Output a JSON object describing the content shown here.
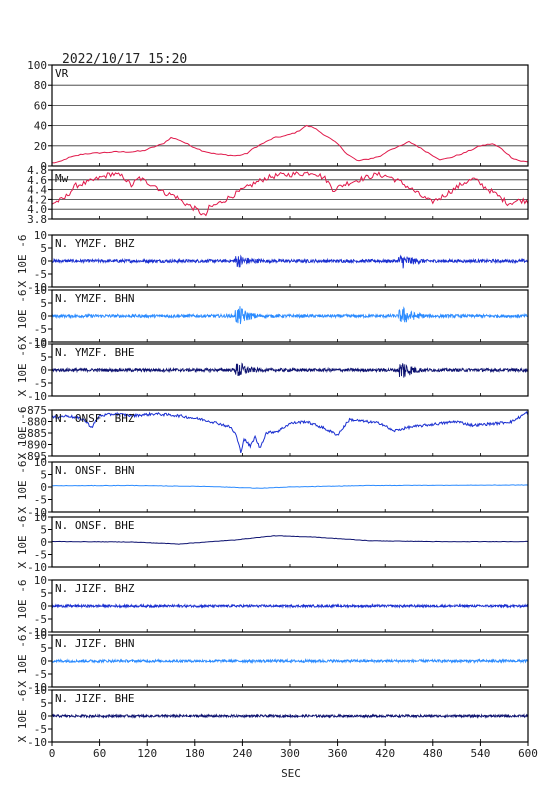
{
  "header": {
    "datetime": "2022/10/17  15:20"
  },
  "chart_data": {
    "type": "line",
    "xlabel": "SEC",
    "x_ticks": [
      0,
      60,
      120,
      180,
      240,
      300,
      360,
      420,
      480,
      540,
      600
    ],
    "xlim": [
      0,
      600
    ],
    "panels": [
      {
        "label": "VR",
        "kind": "vr",
        "color": "#e0194a",
        "ylim": [
          0,
          100
        ],
        "y_ticks": [
          "100",
          "80",
          "60",
          "40",
          "20",
          "0"
        ],
        "grid": true,
        "points": [
          [
            0,
            3
          ],
          [
            10,
            4
          ],
          [
            20,
            8
          ],
          [
            40,
            12
          ],
          [
            60,
            13
          ],
          [
            80,
            14
          ],
          [
            100,
            14
          ],
          [
            115,
            15
          ],
          [
            125,
            18
          ],
          [
            140,
            22
          ],
          [
            150,
            28
          ],
          [
            160,
            26
          ],
          [
            175,
            20
          ],
          [
            190,
            15
          ],
          [
            205,
            12
          ],
          [
            220,
            11
          ],
          [
            232,
            10
          ],
          [
            245,
            12
          ],
          [
            255,
            18
          ],
          [
            265,
            22
          ],
          [
            280,
            28
          ],
          [
            295,
            30
          ],
          [
            310,
            34
          ],
          [
            320,
            40
          ],
          [
            330,
            38
          ],
          [
            345,
            30
          ],
          [
            360,
            22
          ],
          [
            372,
            12
          ],
          [
            385,
            5
          ],
          [
            400,
            7
          ],
          [
            415,
            10
          ],
          [
            425,
            16
          ],
          [
            440,
            20
          ],
          [
            450,
            24
          ],
          [
            460,
            20
          ],
          [
            470,
            15
          ],
          [
            490,
            6
          ],
          [
            505,
            9
          ],
          [
            520,
            13
          ],
          [
            540,
            20
          ],
          [
            555,
            22
          ],
          [
            565,
            18
          ],
          [
            580,
            8
          ],
          [
            590,
            5
          ],
          [
            600,
            4
          ]
        ]
      },
      {
        "label": "Mw",
        "kind": "mw",
        "color": "#e0194a",
        "ylim": [
          3.8,
          4.9
        ],
        "y_ticks": [
          "4.8",
          "4.6",
          "4.4",
          "4.2",
          "4.0",
          "3.8"
        ],
        "grid": true,
        "points": [
          [
            0,
            4.15
          ],
          [
            15,
            4.25
          ],
          [
            30,
            4.55
          ],
          [
            45,
            4.62
          ],
          [
            60,
            4.72
          ],
          [
            75,
            4.82
          ],
          [
            90,
            4.75
          ],
          [
            100,
            4.55
          ],
          [
            110,
            4.72
          ],
          [
            120,
            4.62
          ],
          [
            130,
            4.55
          ],
          [
            140,
            4.4
          ],
          [
            155,
            4.32
          ],
          [
            165,
            4.18
          ],
          [
            175,
            4.08
          ],
          [
            185,
            3.98
          ],
          [
            193,
            3.85
          ],
          [
            198,
            4.05
          ],
          [
            210,
            4.15
          ],
          [
            225,
            4.3
          ],
          [
            240,
            4.45
          ],
          [
            255,
            4.6
          ],
          [
            270,
            4.72
          ],
          [
            285,
            4.78
          ],
          [
            300,
            4.8
          ],
          [
            315,
            4.82
          ],
          [
            330,
            4.85
          ],
          [
            345,
            4.7
          ],
          [
            355,
            4.45
          ],
          [
            365,
            4.55
          ],
          [
            375,
            4.62
          ],
          [
            390,
            4.7
          ],
          [
            410,
            4.8
          ],
          [
            425,
            4.75
          ],
          [
            440,
            4.62
          ],
          [
            455,
            4.45
          ],
          [
            465,
            4.32
          ],
          [
            478,
            4.18
          ],
          [
            490,
            4.28
          ],
          [
            505,
            4.45
          ],
          [
            520,
            4.62
          ],
          [
            532,
            4.7
          ],
          [
            545,
            4.52
          ],
          [
            560,
            4.35
          ],
          [
            575,
            4.15
          ],
          [
            590,
            4.22
          ],
          [
            600,
            4.2
          ]
        ]
      },
      {
        "label": "N. YMZF. BHZ",
        "kind": "trace",
        "color": "#1a2fd0",
        "ylim": [
          -10,
          10
        ],
        "y_ticks": [
          "10",
          "5",
          "0",
          "-5",
          "-10"
        ],
        "units": "X 10E -6",
        "amp": 0.6,
        "bursts": [
          {
            "t": 235,
            "a": 2.2,
            "w": 10
          },
          {
            "t": 442,
            "a": 2.4,
            "w": 10
          }
        ]
      },
      {
        "label": "N. YMZF. BHN",
        "kind": "trace",
        "color": "#2b8bff",
        "ylim": [
          -10,
          10
        ],
        "y_ticks": [
          "10",
          "5",
          "0",
          "-5",
          "-10"
        ],
        "units": "X 10E -6",
        "amp": 0.6,
        "bursts": [
          {
            "t": 236,
            "a": 3.5,
            "w": 9
          },
          {
            "t": 443,
            "a": 3.0,
            "w": 10
          }
        ]
      },
      {
        "label": "N. YMZF. BHE",
        "kind": "trace",
        "color": "#0d1270",
        "ylim": [
          -10,
          10
        ],
        "y_ticks": [
          "10",
          "5",
          "0",
          "-5",
          "-10"
        ],
        "units": "X 10E -6",
        "amp": 0.6,
        "bursts": [
          {
            "t": 236,
            "a": 3.0,
            "w": 8
          },
          {
            "t": 442,
            "a": 3.6,
            "w": 9
          }
        ]
      },
      {
        "label": "N. ONSF. BHZ",
        "kind": "onsf_z",
        "color": "#1a2fd0",
        "ylim": [
          -897,
          -873
        ],
        "y_ticks": [
          "-875",
          "-880",
          "-885",
          "-890",
          "-895"
        ],
        "units": "X 10E -6",
        "points": [
          [
            0,
            -877
          ],
          [
            20,
            -876
          ],
          [
            40,
            -878
          ],
          [
            50,
            -882
          ],
          [
            60,
            -876
          ],
          [
            80,
            -875
          ],
          [
            100,
            -876
          ],
          [
            130,
            -875
          ],
          [
            160,
            -876
          ],
          [
            190,
            -878
          ],
          [
            210,
            -880
          ],
          [
            225,
            -882
          ],
          [
            232,
            -886
          ],
          [
            238,
            -895
          ],
          [
            242,
            -888
          ],
          [
            250,
            -892
          ],
          [
            256,
            -887
          ],
          [
            262,
            -893
          ],
          [
            270,
            -885
          ],
          [
            285,
            -884
          ],
          [
            300,
            -880
          ],
          [
            320,
            -879
          ],
          [
            340,
            -882
          ],
          [
            360,
            -886
          ],
          [
            375,
            -878
          ],
          [
            395,
            -879
          ],
          [
            415,
            -880
          ],
          [
            430,
            -884
          ],
          [
            450,
            -882
          ],
          [
            470,
            -881
          ],
          [
            490,
            -880
          ],
          [
            510,
            -879
          ],
          [
            530,
            -881
          ],
          [
            560,
            -880
          ],
          [
            580,
            -879
          ],
          [
            600,
            -874
          ]
        ]
      },
      {
        "label": "N. ONSF. BHN",
        "kind": "drift",
        "color": "#2b8bff",
        "ylim": [
          -10,
          10
        ],
        "y_ticks": [
          "10",
          "5",
          "0",
          "-5",
          "-10"
        ],
        "units": "X 10E -6",
        "points": [
          [
            0,
            0.5
          ],
          [
            100,
            0.6
          ],
          [
            200,
            0.2
          ],
          [
            260,
            -0.5
          ],
          [
            300,
            0.0
          ],
          [
            400,
            0.6
          ],
          [
            500,
            0.7
          ],
          [
            600,
            0.8
          ]
        ]
      },
      {
        "label": "N. ONSF. BHE",
        "kind": "drift",
        "color": "#0d1270",
        "ylim": [
          -10,
          10
        ],
        "y_ticks": [
          "10",
          "5",
          "0",
          "-5",
          "-10"
        ],
        "units": "X 10E -6",
        "points": [
          [
            0,
            0.2
          ],
          [
            100,
            0.0
          ],
          [
            160,
            -0.8
          ],
          [
            230,
            0.8
          ],
          [
            280,
            2.5
          ],
          [
            330,
            2.0
          ],
          [
            400,
            0.5
          ],
          [
            500,
            0.1
          ],
          [
            600,
            0.2
          ]
        ]
      },
      {
        "label": "N. JIZF. BHZ",
        "kind": "trace",
        "color": "#1a2fd0",
        "ylim": [
          -10,
          10
        ],
        "y_ticks": [
          "10",
          "5",
          "0",
          "-5",
          "-10"
        ],
        "units": "X 10E -6",
        "amp": 0.45,
        "bursts": []
      },
      {
        "label": "N. JIZF. BHN",
        "kind": "trace",
        "color": "#2b8bff",
        "ylim": [
          -10,
          10
        ],
        "y_ticks": [
          "10",
          "5",
          "0",
          "-5",
          "-10"
        ],
        "units": "X 10E -6",
        "amp": 0.5,
        "bursts": []
      },
      {
        "label": "N. JIZF. BHE",
        "kind": "trace",
        "color": "#0d1270",
        "ylim": [
          -10,
          10
        ],
        "y_ticks": [
          "10",
          "5",
          "0",
          "-5",
          "-10"
        ],
        "units": "X 10E -6",
        "amp": 0.45,
        "bursts": []
      }
    ]
  }
}
